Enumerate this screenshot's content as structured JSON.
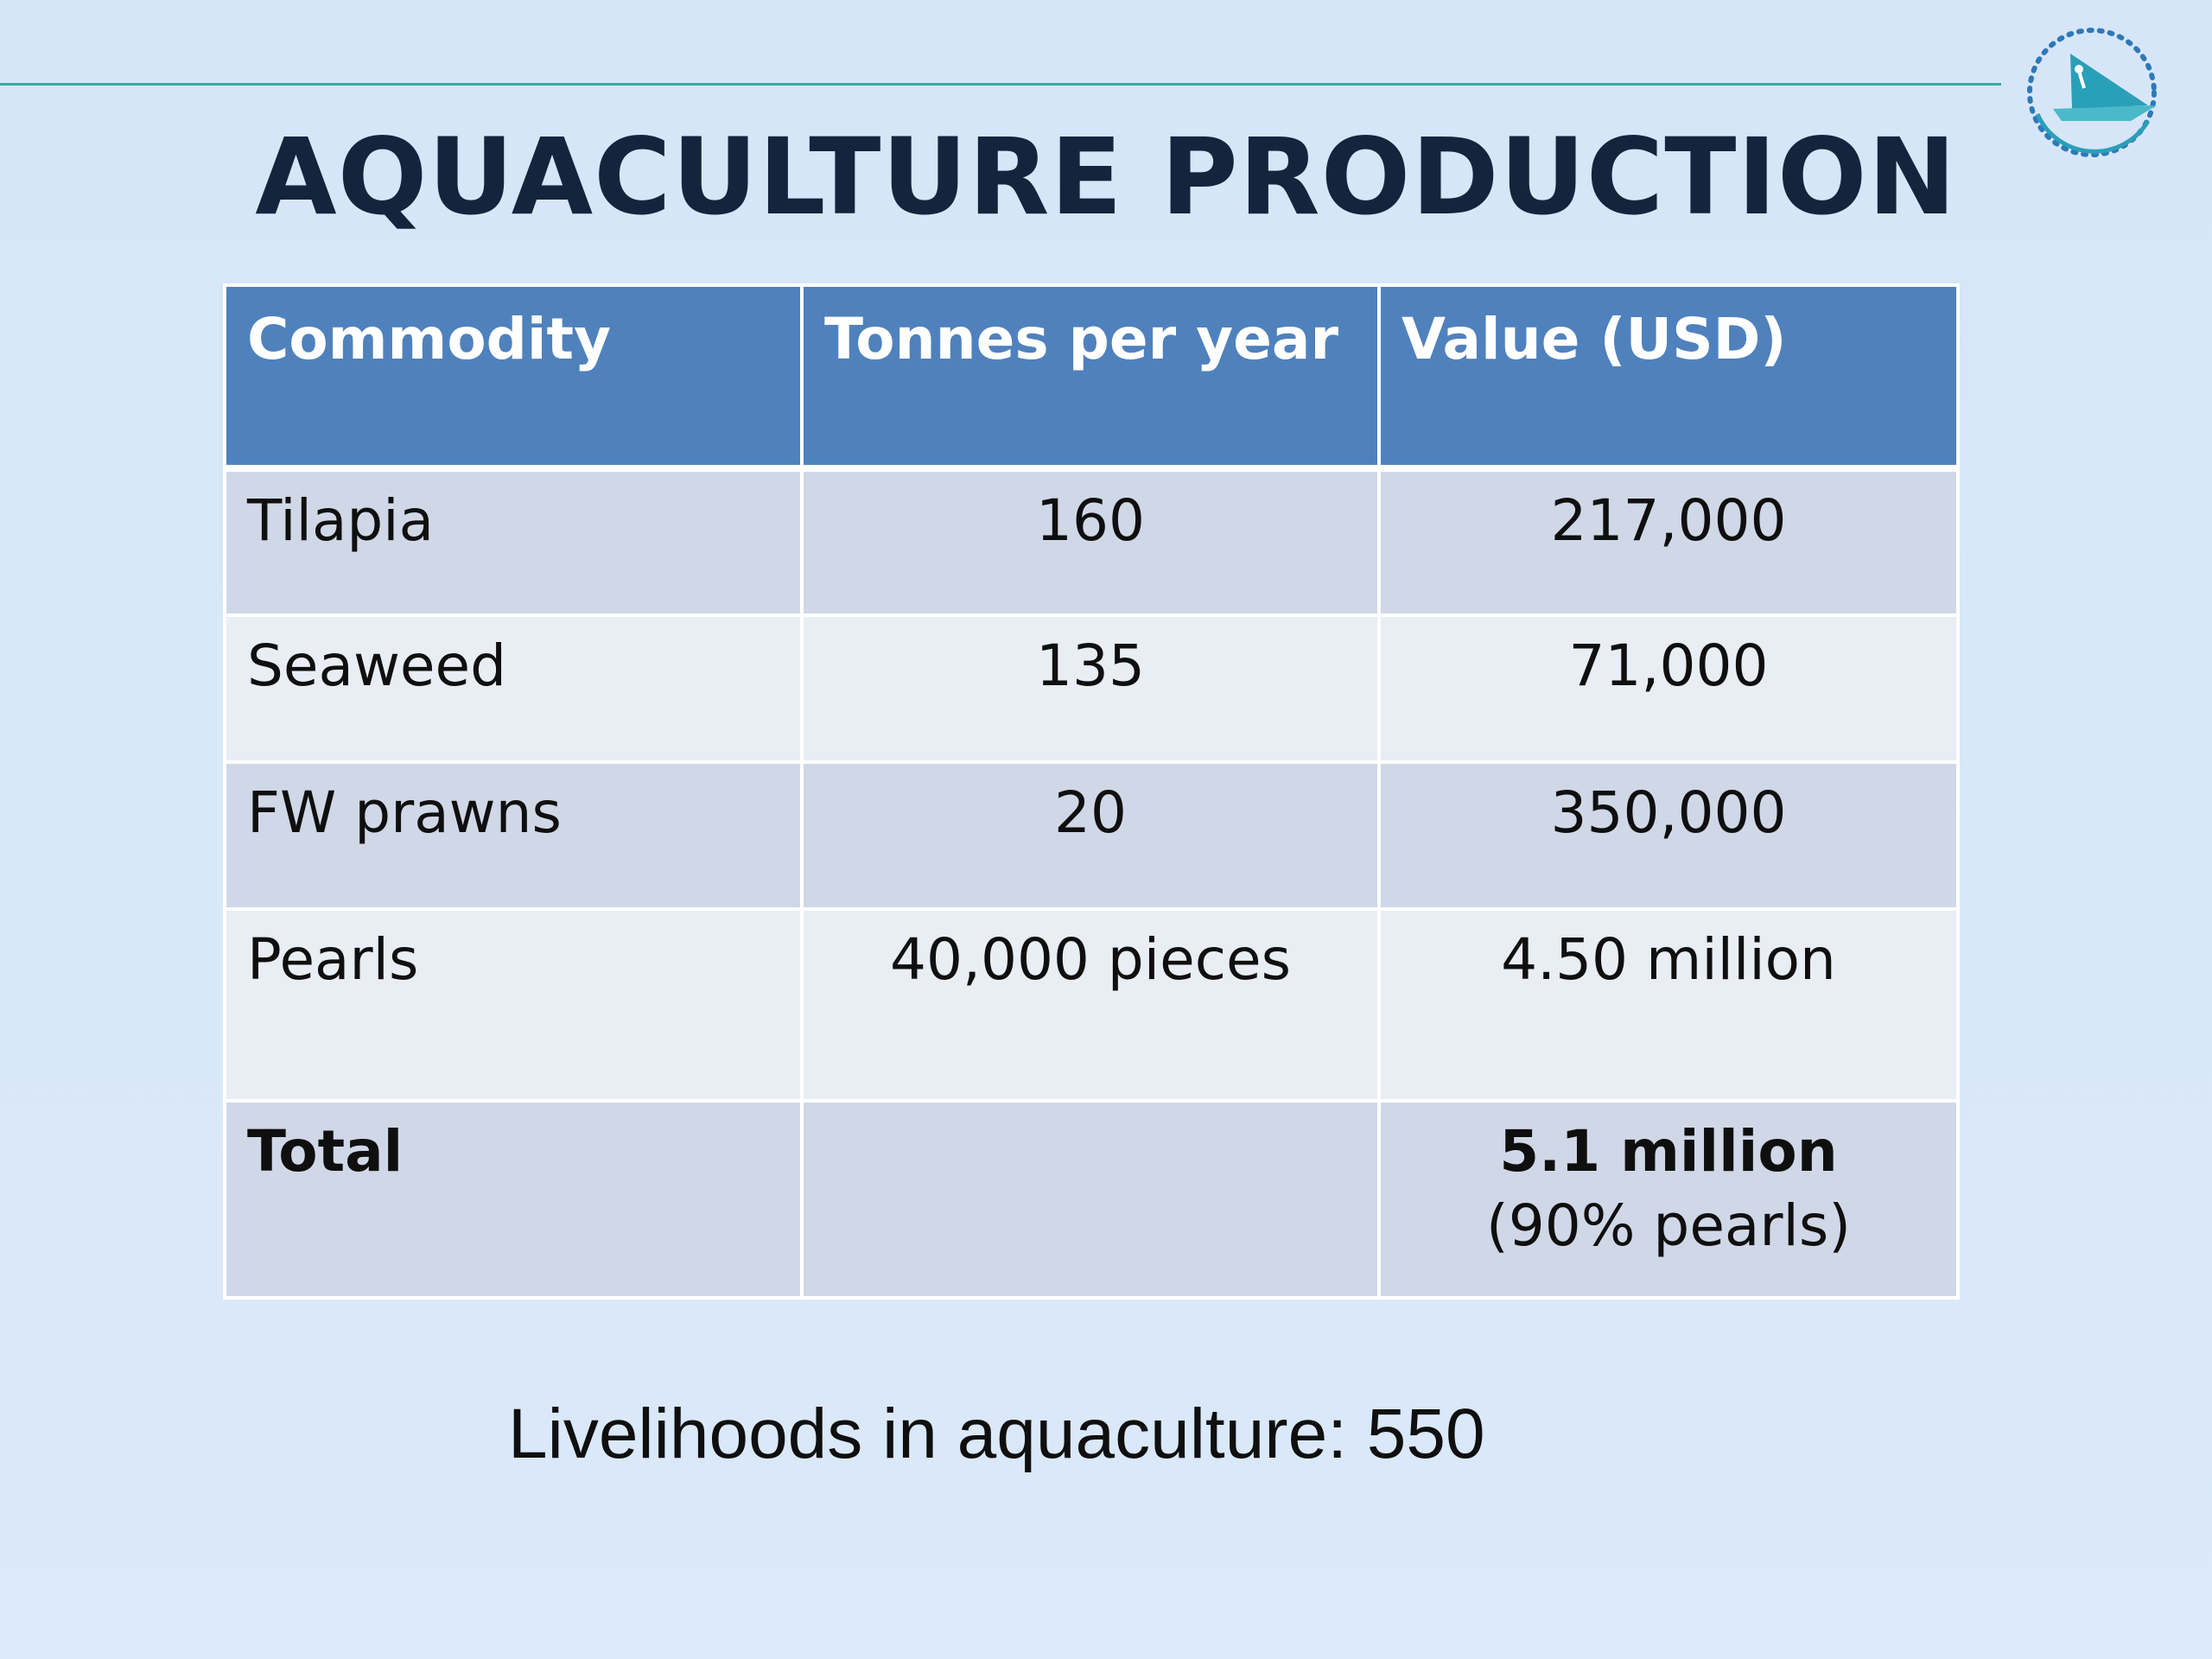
{
  "slide": {
    "title": "AQUACULTURE PRODUCTION",
    "footer_text": "Livelihoods in aquaculture: 550"
  },
  "table": {
    "headers": [
      "Commodity",
      "Tonnes per year",
      "Value (USD)"
    ],
    "rows": [
      {
        "commodity": "Tilapia",
        "tonnes": "160",
        "value": "217,000"
      },
      {
        "commodity": "Seaweed",
        "tonnes": "135",
        "value": "71,000"
      },
      {
        "commodity": "FW prawns",
        "tonnes": "20",
        "value": "350,000"
      },
      {
        "commodity": "Pearls",
        "tonnes": "40,000 pieces",
        "value": "4.50 million"
      }
    ],
    "total": {
      "label": "Total",
      "tonnes": "",
      "value": "5.1 million",
      "value_note": "(90% pearls)"
    }
  },
  "colors": {
    "header_bg": "#4f81bd",
    "row_odd": "#d0d8e8",
    "row_even": "#e9edf4",
    "title": "#14243d",
    "rule": "#3aa9a8",
    "logo_accent": "#2a9fb8"
  },
  "icons": {
    "logo": "sail-boat-logo-icon"
  }
}
